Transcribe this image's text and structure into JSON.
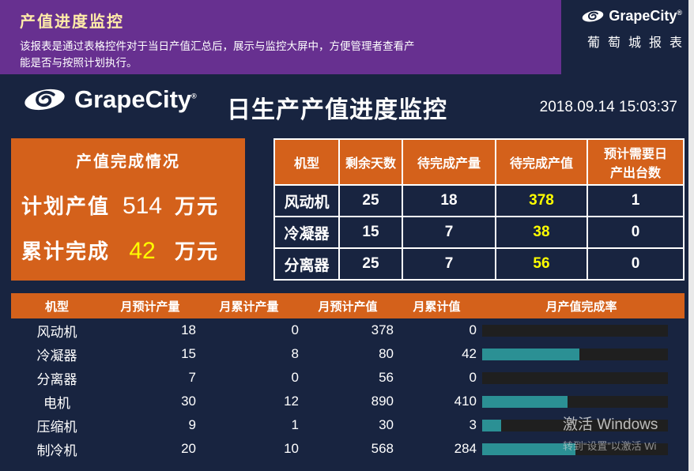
{
  "banner": {
    "title": "产值进度监控",
    "description": "该报表是通过表格控件对于当日产值汇总后，展示与监控大屏中，方便管理者查看产能是否与按照计划执行。",
    "brand": "GrapeCity",
    "reg": "®",
    "brand_cn": "葡萄城报表"
  },
  "header": {
    "brand": "GrapeCity",
    "reg": "®",
    "title": "日生产产值进度监控",
    "datetime": "2018.09.14 15:03:37"
  },
  "summary": {
    "title": "产值完成情况",
    "rows": [
      {
        "label": "计划产值",
        "value": "514",
        "unit": "万元"
      },
      {
        "label": "累计完成",
        "value": "42",
        "unit": "万元"
      }
    ]
  },
  "pending_table": {
    "headers": [
      "机型",
      "剩余天数",
      "待完成产量",
      "待完成产值",
      "预计需要日产出台数"
    ],
    "rows": [
      [
        "风动机",
        "25",
        "18",
        "378",
        "1"
      ],
      [
        "冷凝器",
        "15",
        "7",
        "38",
        "0"
      ],
      [
        "分离器",
        "25",
        "7",
        "56",
        "0"
      ]
    ]
  },
  "monthly_table": {
    "headers": [
      "机型",
      "月预计产量",
      "月累计产量",
      "月预计产值",
      "月累计值",
      "月产值完成率"
    ],
    "rows": [
      {
        "model": "风动机",
        "plan_qty": "18",
        "actual_qty": "0",
        "plan_value": "378",
        "actual_value": "0",
        "percent": 0
      },
      {
        "model": "冷凝器",
        "plan_qty": "15",
        "actual_qty": "8",
        "plan_value": "80",
        "actual_value": "42",
        "percent": 52.5
      },
      {
        "model": "分离器",
        "plan_qty": "7",
        "actual_qty": "0",
        "plan_value": "56",
        "actual_value": "0",
        "percent": 0
      },
      {
        "model": "电机",
        "plan_qty": "30",
        "actual_qty": "12",
        "plan_value": "890",
        "actual_value": "410",
        "percent": 46
      },
      {
        "model": "压缩机",
        "plan_qty": "9",
        "actual_qty": "1",
        "plan_value": "30",
        "actual_value": "3",
        "percent": 10
      },
      {
        "model": "制冷机",
        "plan_qty": "20",
        "actual_qty": "10",
        "plan_value": "568",
        "actual_value": "284",
        "percent": 50
      }
    ]
  },
  "watermark": {
    "line1": "激活 Windows",
    "line2": "转到“设置”以激活 Wi"
  },
  "icons": {
    "grapecity_logo": "grape-swirl-ellipse"
  },
  "colors": {
    "banner_purple": "#673090",
    "background_navy": "#182440",
    "accent_orange": "#d4611b",
    "highlight_yellow": "#ffff00",
    "progress_teal": "#2b9094",
    "progress_track": "#1f1f1f"
  }
}
